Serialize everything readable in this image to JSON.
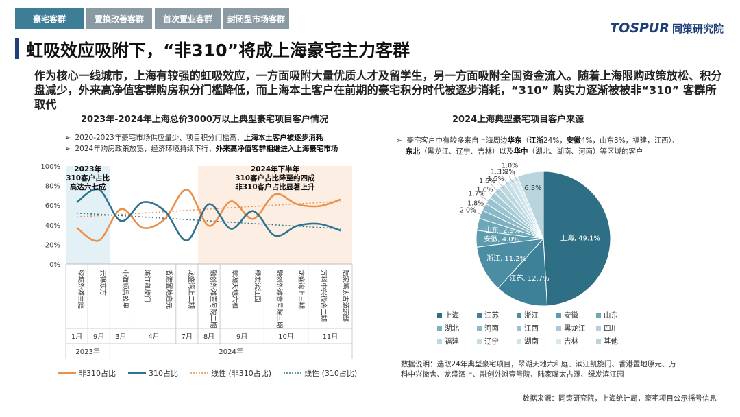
{
  "tabs": [
    "豪宅客群",
    "置换改善客群",
    "首次置业客群",
    "封闭型市场客群"
  ],
  "logo": {
    "en": "TOSPUR",
    "cn": "同策研究院"
  },
  "title": "虹吸效应吸附下，“非310”将成上海豪宅主力客群",
  "intro": "作为核心一线城市，上海有较强的虹吸效应，一方面吸附大量优质人才及留学生，另一方面吸附全国资金流入。随着上海限购政策放松、积分盘减少，外来高净值客群购房积分门槛降低，而上海本土客户在前期的豪宅积分时代被逐步消耗，“310” 购实力逐渐被被非“310” 客群所取代",
  "left_title": "2023年-2024年上海总价3000万以上典型豪宅项目客户情况",
  "left_notes": [
    {
      "plain": "2020-2023年豪宅市场供应量少、项目积分门槛高，",
      "bold": "上海本土客户被逐步消耗"
    },
    {
      "plain": "2024年购房政策放宽，经济环境持续下行，",
      "bold": "外来高净值客群相继进入上海豪宅市场"
    }
  ],
  "right_title": "2024上海典型豪宅项目客户来源",
  "right_note": {
    "line1_plain_a": "豪宅客户中有较多来自上海周边",
    "line1_bold_a": "华东",
    "line1_plain_b": "（",
    "line1_bold_b": "江浙",
    "line1_plain_c": "24%，",
    "line1_bold_c": "安徽",
    "line1_plain_d": "4%，山东3%，福建，江西）、",
    "line2_bold_a": "东北",
    "line2_plain_a": "（黑龙江、辽宁、吉林）以及",
    "line2_bold_b": "华中",
    "line2_plain_b": "（湖北、湖南、河南）等区域的客户"
  },
  "legend_series": [
    "非310占比",
    "310占比",
    "线性 (非310占比)",
    "线性 (310占比)"
  ],
  "explain": "数据说明：选取24年典型豪宅项目，翠湖天地六和庭、滨江凯旋门、香港置地原元、万科中兴微舍、龙盛湾上、融创外滩壹号院、陆家嘴太古源、绿发滨江园",
  "source": "数据来源：同策研究院，上海统计局，豪宅项目公示摇号信息",
  "colors": {
    "non310": "#e9914a",
    "c310": "#2e7391",
    "pie_main": "#2e6f86",
    "tab_active": "#3d7d95"
  },
  "chart_data": [
    {
      "type": "line",
      "categories": [
        "绿城外滩兰庭",
        "云锦东方",
        "中海顺昌玖里",
        "滨江凯旋门",
        "香港置地启元",
        "龙盛湾上二期",
        "融创外滩壹号院二期",
        "翠湖天地六和",
        "绿发滨江园",
        "融创外滩壹号院三期",
        "龙盛湾上三期",
        "万科中兴微舍二期",
        "陆家嘴太古源源邸"
      ],
      "months": [
        {
          "label": "1月",
          "start": 0,
          "end": 0
        },
        {
          "label": "9月",
          "start": 1,
          "end": 1
        },
        {
          "label": "3月",
          "start": 2,
          "end": 2
        },
        {
          "label": "4月",
          "start": 3,
          "end": 4
        },
        {
          "label": "7月",
          "start": 5,
          "end": 5
        },
        {
          "label": "8月",
          "start": 6,
          "end": 6
        },
        {
          "label": "9月",
          "start": 7,
          "end": 8
        },
        {
          "label": "10月",
          "start": 9,
          "end": 10
        },
        {
          "label": "11月",
          "start": 11,
          "end": 12
        }
      ],
      "years": [
        {
          "label": "2023年",
          "start": 0,
          "end": 1
        },
        {
          "label": "2024年",
          "start": 2,
          "end": 12
        }
      ],
      "series": [
        {
          "name": "非310占比",
          "values": [
            37,
            24,
            56,
            37,
            46,
            76,
            39,
            64,
            46,
            71,
            61,
            59,
            66
          ]
        },
        {
          "name": "310占比",
          "values": [
            63,
            76,
            44,
            63,
            54,
            24,
            61,
            36,
            54,
            29,
            39,
            41,
            34
          ]
        }
      ],
      "trend": [
        {
          "name": "线性 (非310占比)",
          "start": 48,
          "end": 64
        },
        {
          "name": "线性 (310占比)",
          "start": 52,
          "end": 36
        }
      ],
      "yticks": [
        "0%",
        "20%",
        "40%",
        "60%",
        "80%",
        "100%"
      ],
      "ylim": [
        0,
        100
      ],
      "annotations": [
        {
          "lines": [
            "2023年",
            "310客户占比",
            "高达六七成"
          ]
        },
        {
          "lines": [
            "2024年下半年",
            "310客户占比降至约四成",
            "非310客户占比显著上升"
          ]
        }
      ],
      "legend": "bottom"
    },
    {
      "type": "pie",
      "slices": [
        {
          "label": "上海",
          "value": 49.1,
          "color": "#2e6f86",
          "text": "上海, 49.1%"
        },
        {
          "label": "江苏",
          "value": 12.7,
          "color": "#3c8197",
          "text": "江苏, 12.7%"
        },
        {
          "label": "浙江",
          "value": 11.2,
          "color": "#4b8ea3",
          "text": "浙江, 11.2%"
        },
        {
          "label": "安徽",
          "value": 4.0,
          "color": "#5d9bae",
          "text": "安徽, 4.0%"
        },
        {
          "label": "山东",
          "value": 2.9,
          "color": "#6ea7b8",
          "text": "山东, 2.9%"
        },
        {
          "label": "湖北",
          "value": 2.0,
          "color": "#7db1c0",
          "text": "2.0%"
        },
        {
          "label": "河南",
          "value": 1.8,
          "color": "#8cbbc8",
          "text": "1.8%"
        },
        {
          "label": "江西",
          "value": 1.7,
          "color": "#99c4cf",
          "text": "1.7%"
        },
        {
          "label": "黑龙江",
          "value": 1.6,
          "color": "#a6cbd6",
          "text": "1.6%"
        },
        {
          "label": "四川",
          "value": 1.6,
          "color": "#b2d3dc",
          "text": "1.6%"
        },
        {
          "label": "福建",
          "value": 1.5,
          "color": "#bcd9e1",
          "text": "1.5%"
        },
        {
          "label": "辽宁",
          "value": 1.3,
          "color": "#c6dfe6",
          "text": "1.3%"
        },
        {
          "label": "湖南",
          "value": 1.3,
          "color": "#cfe4ea",
          "text": "1.3%"
        },
        {
          "label": "吉林",
          "value": 1.0,
          "color": "#d8e9ee",
          "text": "1.0%"
        },
        {
          "label": "其他",
          "value": 6.3,
          "color": "#b9d4dc",
          "text": "6.3%"
        }
      ],
      "legend": "bottom"
    }
  ]
}
